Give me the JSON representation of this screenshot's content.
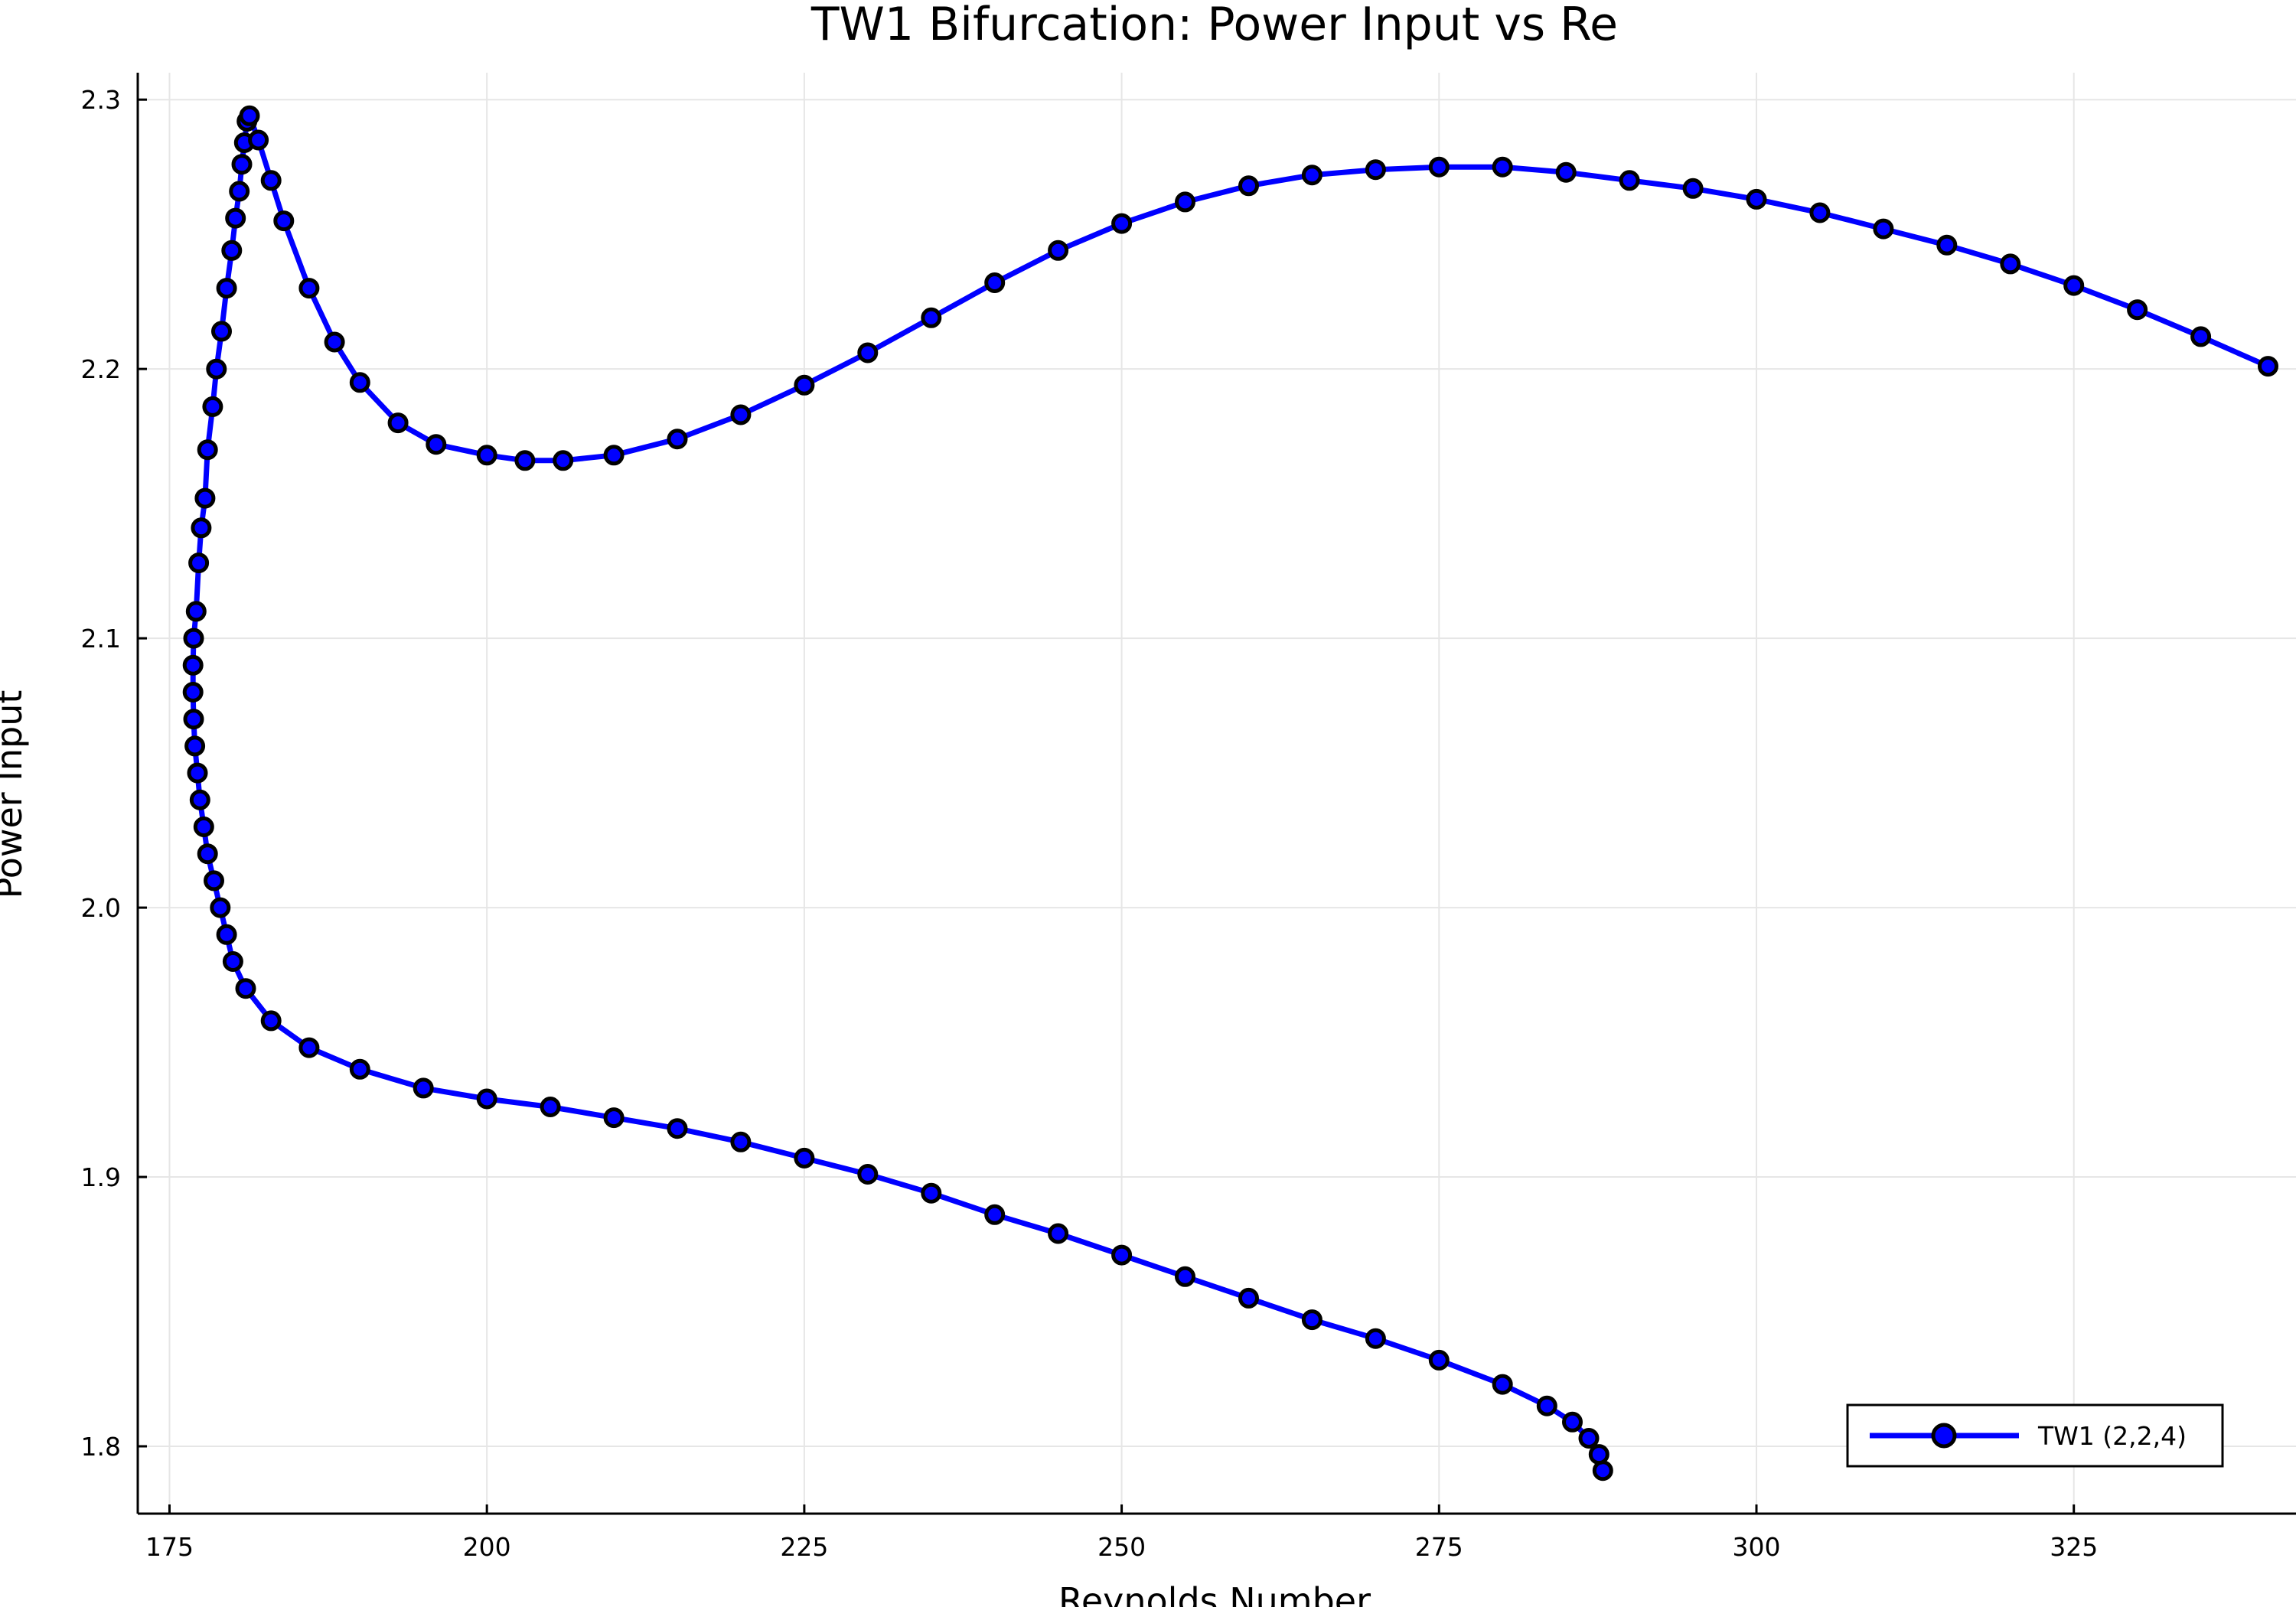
{
  "chart_data": {
    "type": "line",
    "title": "TW1 Bifurcation: Power Input vs Re",
    "xlabel": "Reynolds Number",
    "ylabel": "Power Input",
    "xlim": [
      172.5,
      342.5
    ],
    "ylim": [
      1.775,
      2.31
    ],
    "xticks": [
      175,
      200,
      225,
      250,
      275,
      300,
      325
    ],
    "xtick_labels": [
      "175",
      "200",
      "225",
      "250",
      "275",
      "300",
      "325"
    ],
    "yticks": [
      1.8,
      1.9,
      2.0,
      2.1,
      2.2,
      2.3
    ],
    "ytick_labels": [
      "1.8",
      "1.9",
      "2.0",
      "2.1",
      "2.2",
      "2.3"
    ],
    "grid": true,
    "legend_position": "bottom-right",
    "series": [
      {
        "name": "TW1 (2,2,4)",
        "line_color": "#0000ff",
        "marker_fill": "#0000ff",
        "marker_edge": "#000000",
        "marker": "circle",
        "points": [
          [
            287.9,
            1.791
          ],
          [
            287.6,
            1.797
          ],
          [
            286.8,
            1.803
          ],
          [
            285.5,
            1.809
          ],
          [
            283.5,
            1.815
          ],
          [
            280.0,
            1.823
          ],
          [
            275.0,
            1.832
          ],
          [
            270.0,
            1.84
          ],
          [
            265.0,
            1.847
          ],
          [
            260.0,
            1.855
          ],
          [
            255.0,
            1.863
          ],
          [
            250.0,
            1.871
          ],
          [
            245.0,
            1.879
          ],
          [
            240.0,
            1.886
          ],
          [
            235.0,
            1.894
          ],
          [
            230.0,
            1.901
          ],
          [
            225.0,
            1.907
          ],
          [
            220.0,
            1.913
          ],
          [
            215.0,
            1.918
          ],
          [
            210.0,
            1.922
          ],
          [
            205.0,
            1.926
          ],
          [
            200.0,
            1.929
          ],
          [
            195.0,
            1.933
          ],
          [
            190.0,
            1.94
          ],
          [
            186.0,
            1.948
          ],
          [
            183.0,
            1.958
          ],
          [
            181.0,
            1.97
          ],
          [
            180.0,
            1.98
          ],
          [
            179.5,
            1.99
          ],
          [
            179.0,
            2.0
          ],
          [
            178.5,
            2.01
          ],
          [
            178.0,
            2.02
          ],
          [
            177.7,
            2.03
          ],
          [
            177.4,
            2.04
          ],
          [
            177.2,
            2.05
          ],
          [
            177.0,
            2.06
          ],
          [
            176.9,
            2.07
          ],
          [
            176.85,
            2.08
          ],
          [
            176.85,
            2.09
          ],
          [
            176.9,
            2.1
          ],
          [
            177.1,
            2.11
          ],
          [
            177.3,
            2.128
          ],
          [
            177.5,
            2.141
          ],
          [
            177.8,
            2.152
          ],
          [
            178.0,
            2.17
          ],
          [
            178.4,
            2.186
          ],
          [
            178.7,
            2.2
          ],
          [
            179.1,
            2.214
          ],
          [
            179.5,
            2.23
          ],
          [
            179.9,
            2.244
          ],
          [
            180.2,
            2.256
          ],
          [
            180.5,
            2.266
          ],
          [
            180.7,
            2.276
          ],
          [
            180.9,
            2.284
          ],
          [
            181.1,
            2.292
          ],
          [
            181.3,
            2.294
          ],
          [
            182.0,
            2.285
          ],
          [
            183.0,
            2.27
          ],
          [
            184.0,
            2.255
          ],
          [
            186.0,
            2.23
          ],
          [
            188.0,
            2.21
          ],
          [
            190.0,
            2.195
          ],
          [
            193.0,
            2.18
          ],
          [
            196.0,
            2.172
          ],
          [
            200.0,
            2.168
          ],
          [
            203.0,
            2.166
          ],
          [
            206.0,
            2.166
          ],
          [
            210.0,
            2.168
          ],
          [
            215.0,
            2.174
          ],
          [
            220.0,
            2.183
          ],
          [
            225.0,
            2.194
          ],
          [
            230.0,
            2.206
          ],
          [
            235.0,
            2.219
          ],
          [
            240.0,
            2.232
          ],
          [
            245.0,
            2.244
          ],
          [
            250.0,
            2.254
          ],
          [
            255.0,
            2.262
          ],
          [
            260.0,
            2.268
          ],
          [
            265.0,
            2.272
          ],
          [
            270.0,
            2.274
          ],
          [
            275.0,
            2.275
          ],
          [
            280.0,
            2.275
          ],
          [
            285.0,
            2.273
          ],
          [
            290.0,
            2.27
          ],
          [
            295.0,
            2.267
          ],
          [
            300.0,
            2.263
          ],
          [
            305.0,
            2.258
          ],
          [
            310.0,
            2.252
          ],
          [
            315.0,
            2.246
          ],
          [
            320.0,
            2.239
          ],
          [
            325.0,
            2.231
          ],
          [
            330.0,
            2.222
          ],
          [
            335.0,
            2.212
          ],
          [
            340.3,
            2.201
          ]
        ]
      }
    ]
  }
}
